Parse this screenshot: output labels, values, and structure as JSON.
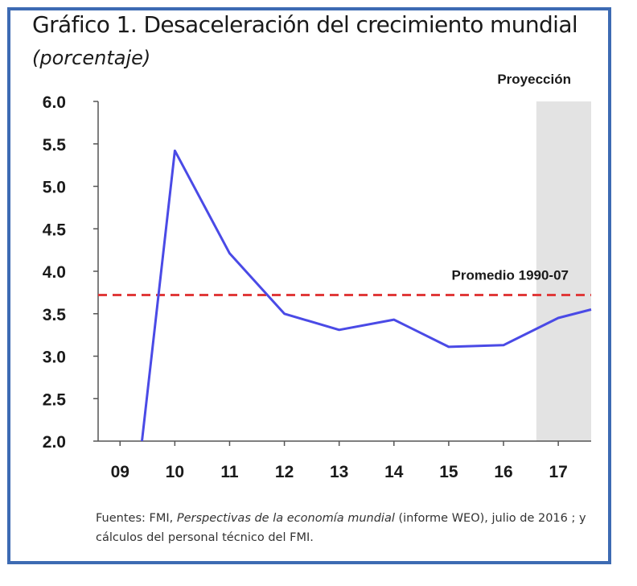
{
  "chart_data": {
    "type": "line",
    "title": "Gráfico 1. Desaceleración del crecimiento mundial",
    "subtitle": "(porcentaje)",
    "categories": [
      "09",
      "10",
      "11",
      "12",
      "13",
      "14",
      "15",
      "16",
      "17"
    ],
    "series": [
      {
        "x": [
          9.4,
          10,
          11,
          12,
          13,
          14,
          15,
          16,
          17,
          17.6
        ],
        "values": [
          2.0,
          5.42,
          4.21,
          3.5,
          3.31,
          3.43,
          3.11,
          3.13,
          3.45,
          3.55
        ],
        "color": "#4a4ae6"
      }
    ],
    "reference_line": {
      "value": 3.72,
      "label": "Promedio 1990-07",
      "color": "#e03a3a",
      "style": "dashed"
    },
    "projection": {
      "from": 16.6,
      "to": 17.6,
      "label": "Proyección",
      "color": "#e3e3e3"
    },
    "ylim": [
      2.0,
      6.0
    ],
    "xlim": [
      8.6,
      17.6
    ],
    "yticks": [
      "2.0",
      "2.5",
      "3.0",
      "3.5",
      "4.0",
      "4.5",
      "5.0",
      "5.5",
      "6.0"
    ],
    "grid": false,
    "legend": "none",
    "source_prefix": "Fuentes: FMI, ",
    "source_italic": "Perspectivas de la economía mundial",
    "source_suffix": " (informe WEO), julio de 2016 ; y cálculos del personal técnico del FMI."
  }
}
